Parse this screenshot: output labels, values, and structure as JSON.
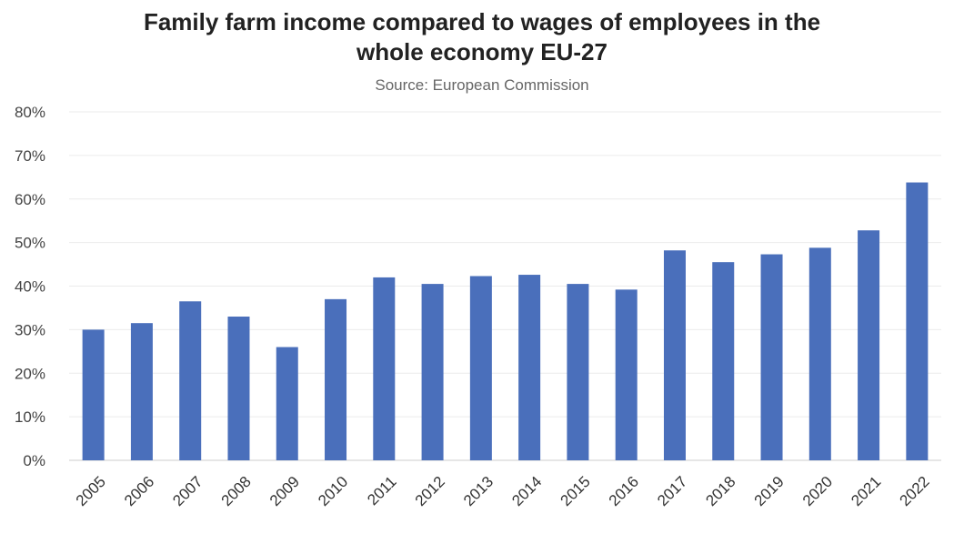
{
  "chart_data": {
    "type": "bar",
    "title_lines": [
      "Family farm income compared to wages of employees in the",
      "whole economy EU-27"
    ],
    "subtitle": "Source: European Commission",
    "xlabel": "",
    "ylabel": "",
    "categories": [
      "2005",
      "2006",
      "2007",
      "2008",
      "2009",
      "2010",
      "2011",
      "2012",
      "2013",
      "2014",
      "2015",
      "2016",
      "2017",
      "2018",
      "2019",
      "2020",
      "2021",
      "2022"
    ],
    "values": [
      30,
      31.5,
      36.5,
      33,
      26,
      37,
      42,
      40.5,
      42.3,
      42.6,
      40.5,
      39.2,
      48.2,
      45.5,
      47.3,
      48.8,
      52.8,
      63.8
    ],
    "ylim": [
      0,
      80
    ],
    "yticks": [
      0,
      10,
      20,
      30,
      40,
      50,
      60,
      70,
      80
    ],
    "ytick_suffix": "%",
    "grid": true,
    "legend": "none",
    "bar_color": "#4a6fbb",
    "grid_color": "#ebebeb"
  }
}
